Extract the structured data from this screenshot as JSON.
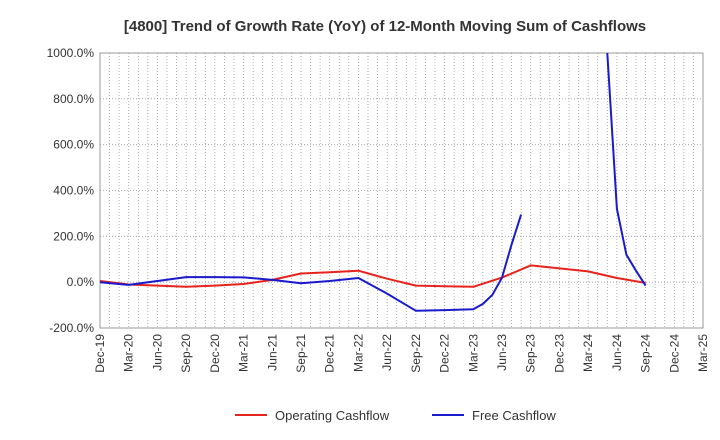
{
  "chart_data": {
    "type": "line",
    "title": "[4800]  Trend of Growth Rate (YoY) of 12-Month Moving Sum of Cashflows",
    "xlabel": "",
    "ylabel": "",
    "ylim": [
      -200,
      1000
    ],
    "y_ticks": [
      "-200.0%",
      "0.0%",
      "200.0%",
      "400.0%",
      "600.0%",
      "800.0%",
      "1000.0%"
    ],
    "x_ticks": [
      "Dec-19",
      "Mar-20",
      "Jun-20",
      "Sep-20",
      "Dec-20",
      "Mar-21",
      "Jun-21",
      "Sep-21",
      "Dec-21",
      "Mar-22",
      "Jun-22",
      "Sep-22",
      "Dec-22",
      "Mar-23",
      "Jun-23",
      "Sep-23",
      "Dec-23",
      "Mar-24",
      "Jun-24",
      "Sep-24",
      "Dec-24",
      "Mar-25"
    ],
    "grid": true,
    "legend_position": "bottom",
    "series": [
      {
        "name": "Operating Cashflow",
        "color": "#e8231d",
        "x": [
          "Dec-19",
          "Mar-20",
          "Jun-20",
          "Sep-20",
          "Dec-20",
          "Mar-21",
          "Jun-21",
          "Sep-21",
          "Dec-21",
          "Mar-22",
          "Jun-22",
          "Sep-22",
          "Dec-22",
          "Mar-23",
          "Jun-23",
          "Sep-23",
          "Dec-23",
          "Mar-24",
          "Jun-24",
          "Sep-24"
        ],
        "values": [
          5,
          -10,
          -15,
          -20,
          -15,
          -8,
          10,
          38,
          43,
          50,
          15,
          -15,
          -18,
          -20,
          20,
          73,
          60,
          47,
          18,
          -3
        ]
      },
      {
        "name": "Free Cashflow",
        "color": "#1a1acd",
        "x": [
          "Dec-19",
          "Mar-20",
          "Jun-20",
          "Sep-20",
          "Dec-20",
          "Mar-21",
          "Jun-21",
          "Sep-21",
          "Dec-21",
          "Mar-22",
          "Jun-22",
          "Sep-22",
          "Dec-22",
          "Mar-23",
          "Apr-23",
          "May-23",
          "Jun-23",
          "Jul-23",
          "Aug-23",
          null,
          "May-24",
          "Jun-24",
          "Jul-24",
          "Aug-24",
          "Sep-24"
        ],
        "values": [
          0,
          -12,
          5,
          22,
          22,
          21,
          10,
          -5,
          5,
          18,
          -50,
          -125,
          -122,
          -118,
          -95,
          -55,
          20,
          165,
          295,
          null,
          1000,
          320,
          120,
          50,
          -15
        ]
      }
    ]
  }
}
